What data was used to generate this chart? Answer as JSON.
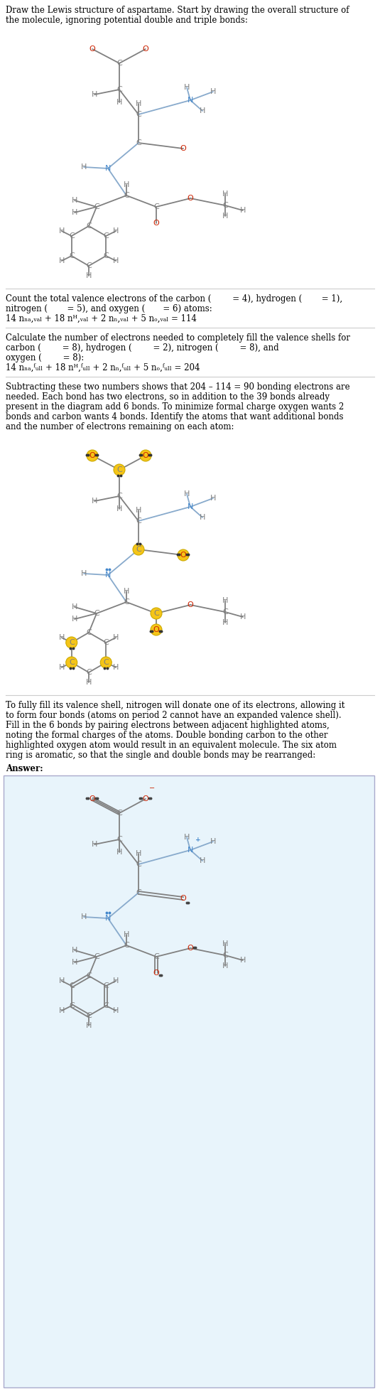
{
  "bg_color": "#ffffff",
  "box_bg": "#e8f4fb",
  "C_color": "#808080",
  "H_color": "#808080",
  "N_color": "#4488cc",
  "O_color": "#cc2200",
  "bond_color": "#808080",
  "N_bond_color": "#88aacc",
  "highlight_color": "#f5c518",
  "highlight_border": "#ccaa00",
  "divider_color": "#cccccc",
  "text_color": "#000000",
  "answer_border": "#aaaacc"
}
